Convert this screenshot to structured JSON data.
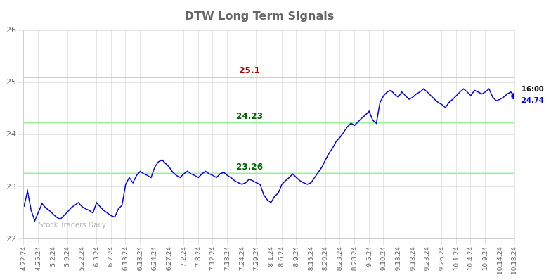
{
  "chart_data": {
    "type": "line",
    "title": "DTW Long Term Signals",
    "categories": [
      "4.22.24",
      null,
      null,
      null,
      "4.25.24",
      null,
      null,
      null,
      "5.2.24",
      null,
      null,
      null,
      "5.9.24",
      null,
      null,
      null,
      "5.22.24",
      null,
      null,
      null,
      "6.3.24",
      null,
      null,
      null,
      "6.7.24",
      null,
      null,
      null,
      "6.13.24",
      null,
      null,
      null,
      "6.18.24",
      null,
      null,
      null,
      "6.24.24",
      null,
      null,
      null,
      "6.27.24",
      null,
      null,
      null,
      "7.2.24",
      null,
      null,
      null,
      "7.8.24",
      null,
      null,
      null,
      "7.12.24",
      null,
      null,
      null,
      "7.18.24",
      null,
      null,
      null,
      "7.24.24",
      null,
      null,
      null,
      "7.29.24",
      null,
      null,
      null,
      "8.1.24",
      null,
      null,
      "8.6.24",
      null,
      null,
      null,
      "8.9.24",
      null,
      null,
      null,
      "8.15.24",
      null,
      null,
      null,
      "8.20.24",
      null,
      null,
      null,
      "8.23.24",
      null,
      null,
      null,
      "8.28.24",
      null,
      null,
      null,
      "9.5.24",
      null,
      null,
      null,
      "9.10.24",
      null,
      null,
      null,
      "9.13.24",
      null,
      null,
      null,
      "9.18.24",
      null,
      null,
      null,
      "9.23.24",
      null,
      null,
      null,
      "9.26.24",
      null,
      null,
      null,
      "10.1.24",
      null,
      null,
      null,
      "10.4.24",
      null,
      null,
      null,
      "10.9.24",
      null,
      null,
      null,
      "10.14.24",
      null,
      null,
      null,
      "10.18.24"
    ],
    "values": [
      22.62,
      22.92,
      22.55,
      22.35,
      22.52,
      22.68,
      22.6,
      22.55,
      22.48,
      22.42,
      22.38,
      22.45,
      22.52,
      22.6,
      22.65,
      22.7,
      22.62,
      22.58,
      22.55,
      22.5,
      22.7,
      22.62,
      22.55,
      22.5,
      22.45,
      22.42,
      22.58,
      22.65,
      23.05,
      23.18,
      23.08,
      23.22,
      23.3,
      23.25,
      23.22,
      23.18,
      23.38,
      23.48,
      23.52,
      23.45,
      23.38,
      23.28,
      23.22,
      23.18,
      23.25,
      23.3,
      23.25,
      23.22,
      23.18,
      23.25,
      23.3,
      23.25,
      23.22,
      23.18,
      23.25,
      23.28,
      23.22,
      23.18,
      23.12,
      23.08,
      23.05,
      23.08,
      23.15,
      23.12,
      23.08,
      23.05,
      22.85,
      22.75,
      22.7,
      22.82,
      22.88,
      23.05,
      23.12,
      23.18,
      23.25,
      23.18,
      23.12,
      23.08,
      23.05,
      23.08,
      23.18,
      23.28,
      23.38,
      23.52,
      23.65,
      23.75,
      23.88,
      23.95,
      24.05,
      24.15,
      24.22,
      24.18,
      24.25,
      24.32,
      24.38,
      24.45,
      24.28,
      24.22,
      24.62,
      24.75,
      24.82,
      24.85,
      24.78,
      24.72,
      24.82,
      24.75,
      24.68,
      24.72,
      24.78,
      24.82,
      24.88,
      24.82,
      24.75,
      24.68,
      24.62,
      24.58,
      24.52,
      24.62,
      24.68,
      24.75,
      24.82,
      24.88,
      24.82,
      24.75,
      24.85,
      24.82,
      24.78,
      24.82,
      24.88,
      24.72,
      24.65,
      24.68,
      24.72,
      24.78,
      24.82,
      24.74
    ],
    "color": "blue",
    "ylim": [
      22,
      26
    ],
    "yticks": [
      22,
      23,
      24,
      25,
      26
    ],
    "grid": true,
    "hlines": [
      {
        "y": 25.1,
        "label": "25.1",
        "line_color": "#ffbbbb",
        "label_color": "#aa0000"
      },
      {
        "y": 24.23,
        "label": "24.23",
        "line_color": "#99ee99",
        "label_color": "#006600"
      },
      {
        "y": 23.26,
        "label": "23.26",
        "line_color": "#99ee99",
        "label_color": "#006600"
      }
    ],
    "last_point": {
      "label": "16:00",
      "value_label": "24.74",
      "color": "blue"
    },
    "watermark": "Stock Traders Daily"
  }
}
